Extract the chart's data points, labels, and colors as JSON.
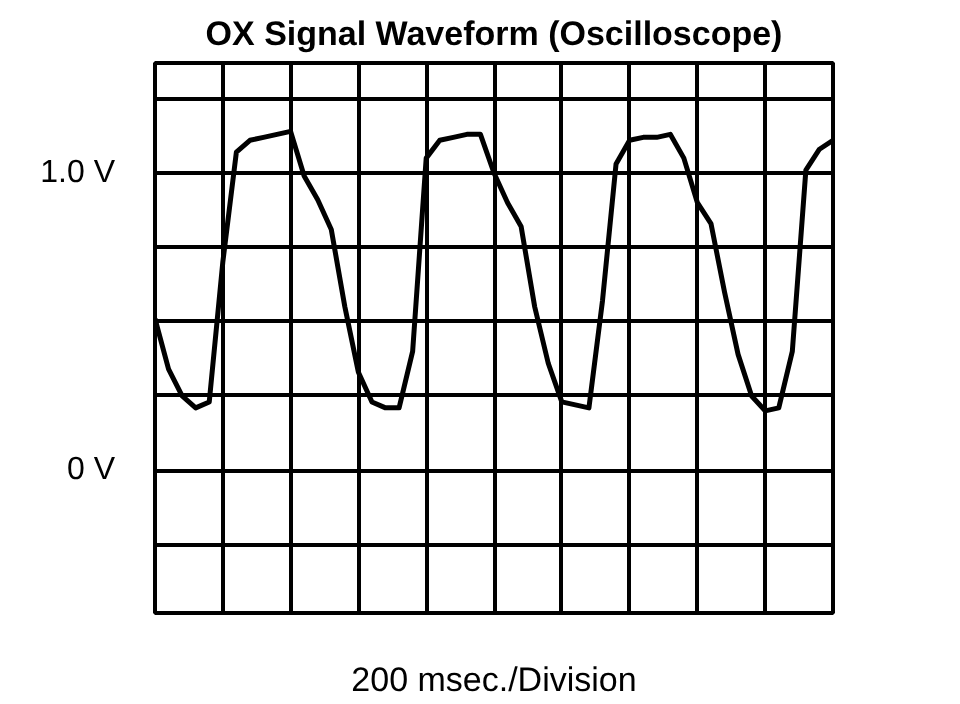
{
  "chart_data": {
    "type": "line",
    "title": "OX Signal Waveform (Oscilloscope)",
    "xlabel": "200 msec./Division",
    "categories": [
      null,
      null,
      null,
      null,
      null,
      null,
      null,
      null,
      null,
      null,
      null,
      null,
      null,
      null,
      null,
      null,
      null,
      null,
      null,
      null,
      null,
      null,
      null,
      null,
      null,
      null,
      null,
      null,
      null,
      null,
      null,
      null,
      null,
      null,
      null,
      null,
      null,
      null,
      null,
      null,
      null,
      null,
      null,
      null,
      null,
      null,
      null,
      null,
      null,
      null,
      null
    ],
    "series": [
      {
        "color": "#000000",
        "values": [
          0.51,
          0.34,
          0.25,
          0.21,
          0.23,
          0.7,
          1.07,
          1.11,
          1.12,
          1.13,
          1.14,
          0.99,
          0.91,
          0.81,
          0.55,
          0.33,
          0.23,
          0.21,
          0.21,
          0.4,
          1.05,
          1.11,
          1.12,
          1.13,
          1.13,
          1.0,
          0.9,
          0.82,
          0.55,
          0.36,
          0.23,
          0.22,
          0.21,
          0.57,
          1.03,
          1.11,
          1.12,
          1.12,
          1.13,
          1.05,
          0.9,
          0.83,
          0.6,
          0.39,
          0.25,
          0.2,
          0.21,
          0.4,
          1.01,
          1.08,
          1.11
        ]
      }
    ],
    "ylim": [
      -0.48,
      1.37
    ],
    "yticks": [
      {
        "value": -0.25,
        "label": null
      },
      {
        "value": 0,
        "label": "0 V"
      },
      {
        "value": 0.25,
        "label": null
      },
      {
        "value": 0.5,
        "label": null
      },
      {
        "value": 0.75,
        "label": null
      },
      {
        "value": 1.0,
        "label": "1.0 V"
      },
      {
        "value": 1.25,
        "label": null
      }
    ],
    "tick_labels": "y",
    "grid": true,
    "marker": "none",
    "line_style": "solid"
  }
}
